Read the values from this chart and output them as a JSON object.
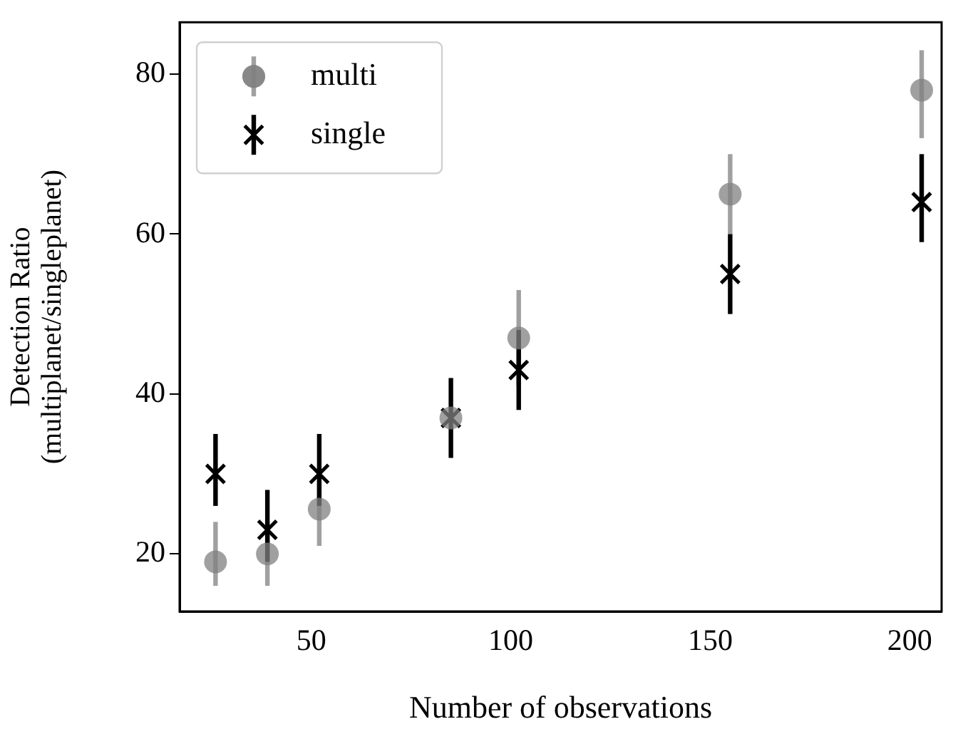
{
  "chart_data": {
    "type": "scatter",
    "xlabel": "Number of observations",
    "ylabel": "Detection Ratio\n(multiplanet/singleplanet)",
    "xlim": [
      17,
      208
    ],
    "xticks": [
      50,
      100,
      150,
      200
    ],
    "ylim": [
      12.8,
      86.5
    ],
    "yticks": [
      20,
      40,
      60,
      80
    ],
    "grid": false,
    "legend": "top left",
    "series": [
      {
        "name": "multi",
        "color": "#808080",
        "marker": "circle",
        "x": [
          26,
          39,
          52,
          85,
          102,
          155,
          203
        ],
        "values": [
          19,
          20,
          25.6,
          37,
          47,
          65,
          78
        ],
        "errors": [
          [
            16,
            24
          ],
          [
            16,
            24
          ],
          [
            21,
            30
          ],
          null,
          [
            41,
            53
          ],
          [
            60,
            70
          ],
          [
            72,
            83
          ]
        ]
      },
      {
        "name": "single",
        "color": "#000000",
        "marker": "cross",
        "x": [
          26,
          39,
          52,
          85,
          102,
          155,
          203
        ],
        "values": [
          30,
          23,
          30,
          37,
          43,
          55,
          64
        ],
        "errors": [
          [
            26,
            35
          ],
          [
            19,
            28
          ],
          [
            26,
            35
          ],
          [
            32,
            42
          ],
          [
            38,
            48
          ],
          [
            50,
            60
          ],
          [
            59,
            70
          ]
        ]
      }
    ]
  }
}
